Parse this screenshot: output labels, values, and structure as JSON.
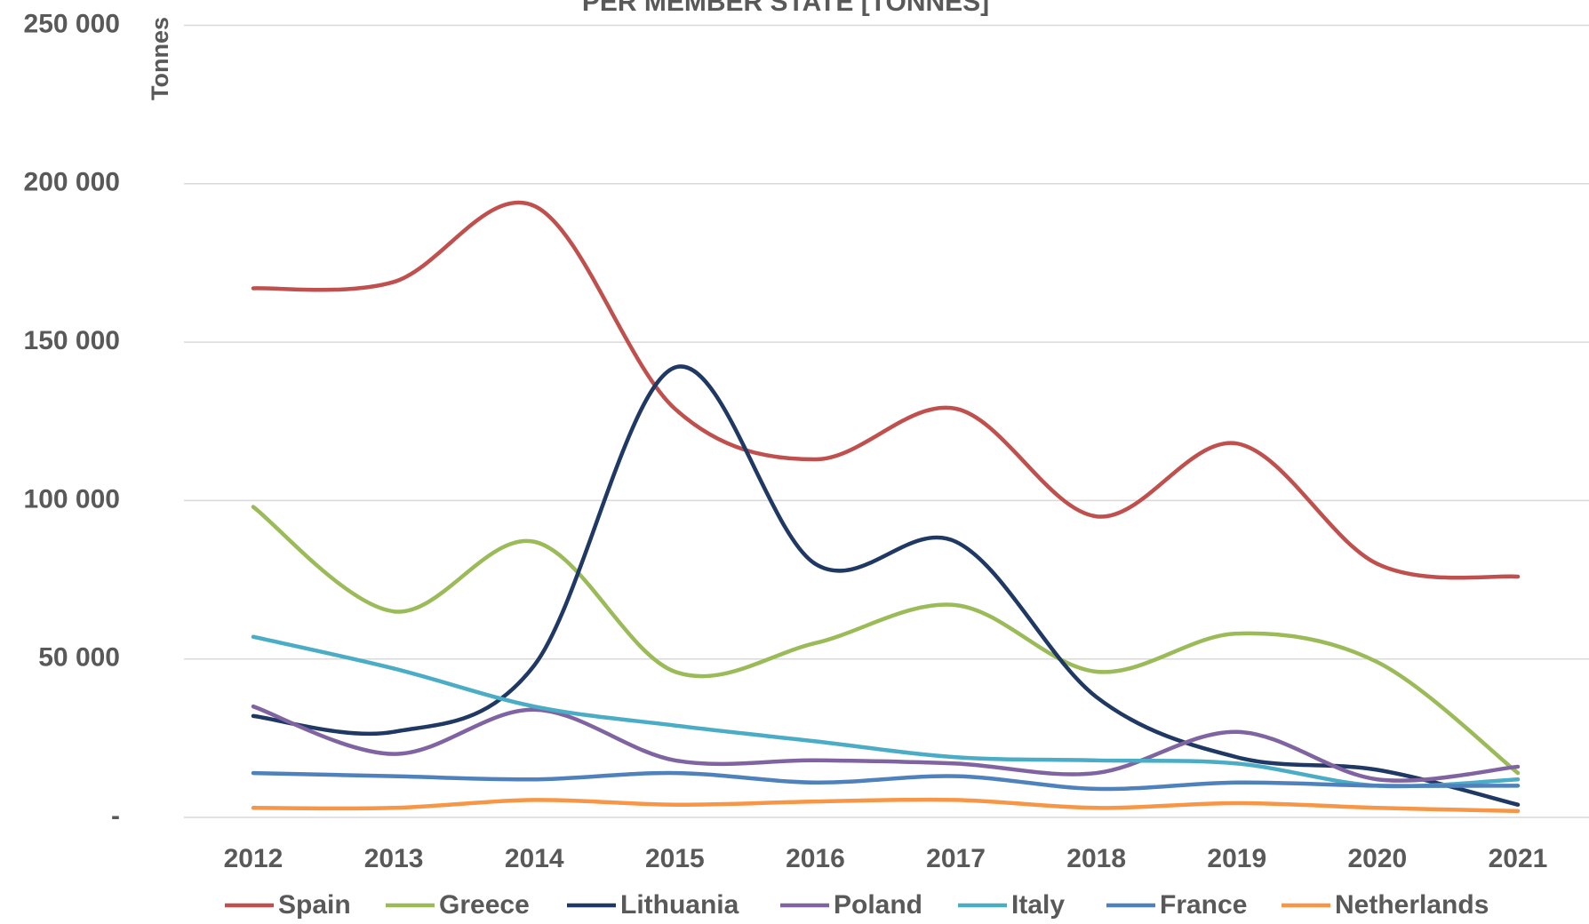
{
  "chart_data": {
    "type": "line",
    "title": "PER MEMBER STATE [TONNES]",
    "y_label": "Tonnes",
    "categories": [
      "2012",
      "2013",
      "2014",
      "2015",
      "2016",
      "2017",
      "2018",
      "2019",
      "2020",
      "2021"
    ],
    "series": [
      {
        "name": "Spain",
        "color": "#c0504d",
        "values": [
          167000,
          169000,
          193000,
          129000,
          113000,
          129000,
          95000,
          118000,
          80000,
          76000
        ]
      },
      {
        "name": "Greece",
        "color": "#9bbb59",
        "values": [
          98000,
          65000,
          87000,
          46000,
          55000,
          67000,
          46000,
          58000,
          49000,
          14000
        ]
      },
      {
        "name": "Lithuania",
        "color": "#1f3864",
        "values": [
          32000,
          27000,
          48000,
          142000,
          80000,
          87000,
          38000,
          19000,
          15000,
          4000
        ]
      },
      {
        "name": "Poland",
        "color": "#8064a2",
        "values": [
          35000,
          20000,
          34000,
          18000,
          18000,
          17000,
          14000,
          27000,
          12000,
          16000
        ]
      },
      {
        "name": "Italy",
        "color": "#4bacc6",
        "values": [
          57000,
          47000,
          35000,
          29000,
          24000,
          19000,
          18000,
          17000,
          10000,
          12000
        ]
      },
      {
        "name": "France",
        "color": "#4f81bd",
        "values": [
          14000,
          13000,
          12000,
          14000,
          11000,
          13000,
          9000,
          11000,
          10000,
          10000
        ]
      },
      {
        "name": "Netherlands",
        "color": "#f79646",
        "values": [
          3000,
          3000,
          5500,
          4000,
          5000,
          5500,
          3000,
          4500,
          3000,
          2000
        ]
      }
    ],
    "ylim": [
      0,
      250000
    ],
    "yticks": [
      {
        "value": 0,
        "label": "-"
      },
      {
        "value": 50000,
        "label": "50 000"
      },
      {
        "value": 100000,
        "label": "100 000"
      },
      {
        "value": 150000,
        "label": "150 000"
      },
      {
        "value": 200000,
        "label": "200 000"
      },
      {
        "value": 250000,
        "label": "250 000"
      }
    ],
    "grid": true,
    "legend": "bottom"
  }
}
